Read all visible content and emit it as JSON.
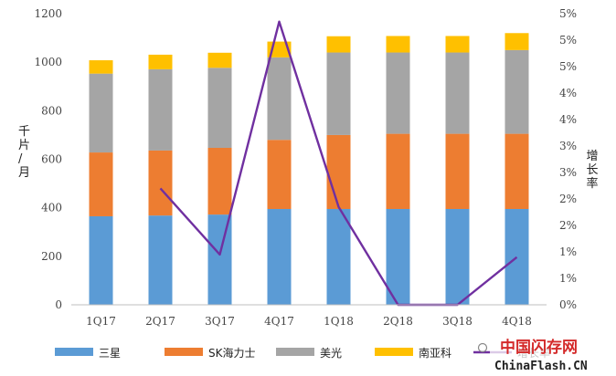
{
  "chart_data": {
    "type": "bar",
    "stacked": true,
    "categories": [
      "1Q17",
      "2Q17",
      "3Q17",
      "4Q17",
      "1Q18",
      "2Q18",
      "3Q18",
      "4Q18"
    ],
    "series": [
      {
        "name": "三星",
        "values": [
          365,
          368,
          372,
          395,
          395,
          395,
          395,
          395
        ],
        "color": "#5b9bd5"
      },
      {
        "name": "SK海力士",
        "values": [
          263,
          268,
          275,
          285,
          305,
          310,
          310,
          310
        ],
        "color": "#ed7d31"
      },
      {
        "name": "美光",
        "values": [
          325,
          335,
          330,
          340,
          340,
          335,
          335,
          345
        ],
        "color": "#a5a5a5"
      },
      {
        "name": "南亚科",
        "values": [
          55,
          60,
          62,
          65,
          67,
          68,
          68,
          70
        ],
        "color": "#ffc000"
      }
    ],
    "line_series": {
      "name": "增长率",
      "axis": "right",
      "color": "#7030a0",
      "values": [
        null,
        2.2,
        0.95,
        5.35,
        1.85,
        0,
        0,
        0.9
      ]
    },
    "ylabel": "千片/月",
    "y2label": "增长率",
    "ylim": [
      0,
      1200
    ],
    "y_ticks": [
      "0",
      "200",
      "400",
      "600",
      "800",
      "1000",
      "1200"
    ],
    "y2lim": [
      0,
      5.5
    ],
    "y2_ticks": [
      "0%",
      "1%",
      "1%",
      "2%",
      "2%",
      "3%",
      "3%",
      "4%",
      "4%",
      "5%",
      "5%",
      "5%"
    ],
    "legend_position": "bottom",
    "grid": false
  },
  "watermark": {
    "text_top": "中国闪存网",
    "text_bottom": "ChinaFlash.CN"
  }
}
